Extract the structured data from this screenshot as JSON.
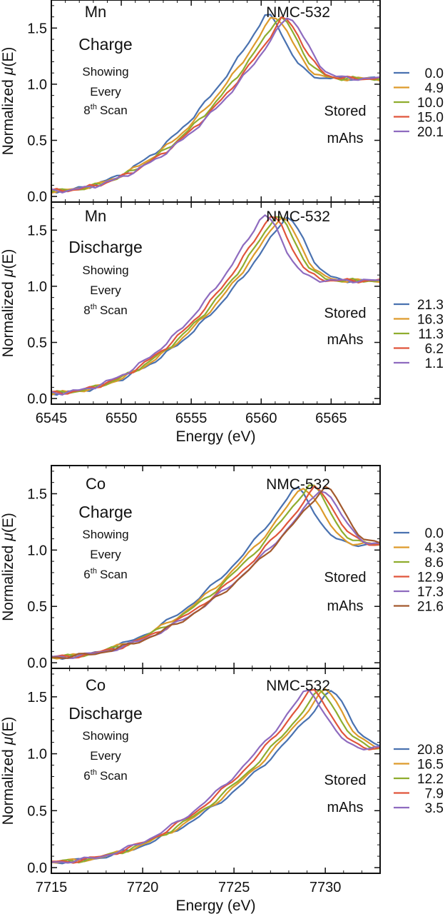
{
  "figure": {
    "ylabel_prefix": "Normalized",
    "ylabel_mu": "μ",
    "ylabel_suffix": "(E)",
    "stored_line1": "Stored",
    "stored_line2": "mAhs",
    "showing": "Showing",
    "every": "Every",
    "scan": "Scan",
    "energy_label": "Energy (eV)"
  },
  "colors": [
    "#4a72b0",
    "#dd9a2b",
    "#8fad2e",
    "#e0553b",
    "#8e6bbf",
    "#a35a2e"
  ],
  "chart_data": [
    {
      "type": "line",
      "element": "Mn",
      "mode": "Charge",
      "material": "NMC-532",
      "every_n": "8",
      "ordinal_suffix": "th",
      "xlim": [
        6545,
        6568.5
      ],
      "ylim": [
        -0.05,
        1.75
      ],
      "yticks": [
        "0.0",
        "0.5",
        "1.0",
        "1.5"
      ],
      "ytick_values": [
        0,
        0.5,
        1.0,
        1.5
      ],
      "xticks": [],
      "legend": [
        "0.0",
        "4.9",
        "10.0",
        "15.0",
        "20.1"
      ],
      "peak_energies": [
        6560.3,
        6560.8,
        6561.2,
        6561.5,
        6561.8
      ],
      "peak_heights": [
        1.62,
        1.61,
        1.6,
        1.59,
        1.6
      ]
    },
    {
      "type": "line",
      "element": "Mn",
      "mode": "Discharge",
      "material": "NMC-532",
      "every_n": "8",
      "ordinal_suffix": "th",
      "xlim": [
        6545,
        6568.5
      ],
      "ylim": [
        -0.05,
        1.75
      ],
      "yticks": [
        "0.0",
        "0.5",
        "1.0",
        "1.5"
      ],
      "ytick_values": [
        0,
        0.5,
        1.0,
        1.5
      ],
      "xticks": [
        "6545",
        "6550",
        "6555",
        "6560",
        "6565"
      ],
      "xtick_values": [
        6545,
        6550,
        6555,
        6560,
        6565
      ],
      "xlabel": "Energy (eV)",
      "legend": [
        "21.3",
        "16.3",
        "11.3",
        "6.2",
        "1.1"
      ],
      "peak_energies": [
        6561.7,
        6561.3,
        6561.0,
        6560.6,
        6560.1
      ],
      "peak_heights": [
        1.62,
        1.62,
        1.63,
        1.63,
        1.64
      ]
    },
    {
      "type": "line",
      "element": "Co",
      "mode": "Charge",
      "material": "NMC-532",
      "every_n": "6",
      "ordinal_suffix": "th",
      "xlim": [
        7715,
        7733
      ],
      "ylim": [
        -0.05,
        1.75
      ],
      "yticks": [
        "0.0",
        "0.5",
        "1.0",
        "1.5"
      ],
      "ytick_values": [
        0,
        0.5,
        1.0,
        1.5
      ],
      "xticks": [],
      "legend": [
        "0.0",
        "4.3",
        "8.6",
        "12.9",
        "17.3",
        "21.6"
      ],
      "peak_energies": [
        7728.3,
        7728.7,
        7729.1,
        7729.4,
        7729.7,
        7729.9
      ],
      "peak_heights": [
        1.55,
        1.56,
        1.58,
        1.55,
        1.54,
        1.56
      ]
    },
    {
      "type": "line",
      "element": "Co",
      "mode": "Discharge",
      "material": "NMC-532",
      "every_n": "6",
      "ordinal_suffix": "th",
      "xlim": [
        7715,
        7733
      ],
      "ylim": [
        -0.05,
        1.75
      ],
      "yticks": [
        "0.0",
        "0.5",
        "1.0",
        "1.5"
      ],
      "ytick_values": [
        0,
        0.5,
        1.0,
        1.5
      ],
      "xticks": [
        "7715",
        "7720",
        "7725",
        "7730"
      ],
      "xtick_values": [
        7715,
        7720,
        7725,
        7730
      ],
      "xlabel": "Energy (eV)",
      "legend": [
        "20.8",
        "16.5",
        "12.2",
        "7.9",
        "3.5"
      ],
      "peak_energies": [
        7730.2,
        7729.9,
        7729.6,
        7729.2,
        7728.9
      ],
      "peak_heights": [
        1.55,
        1.56,
        1.55,
        1.56,
        1.56
      ]
    }
  ]
}
